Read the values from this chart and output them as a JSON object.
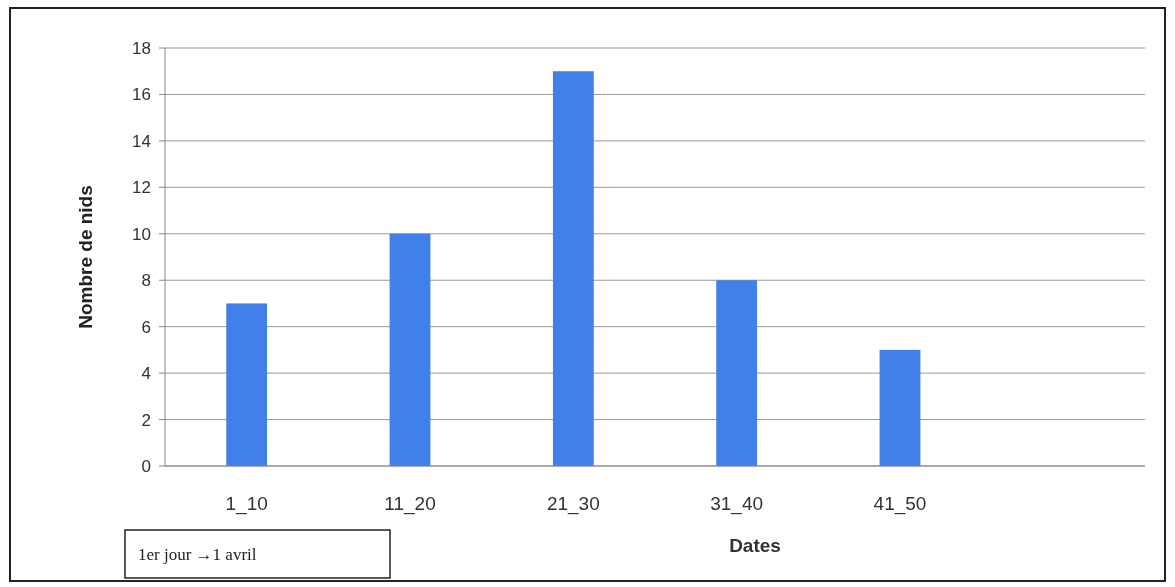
{
  "chart_data": {
    "type": "bar",
    "xlabel": "Dates",
    "ylabel": "Nombre de nids",
    "categories": [
      "1_10",
      "11_20",
      "21_30",
      "31_40",
      "41_50",
      null
    ],
    "values": [
      7,
      10,
      17,
      8,
      5,
      null
    ],
    "color": "#4080e8",
    "ylim": [
      0,
      18
    ],
    "yticks": [
      0,
      2,
      4,
      6,
      8,
      10,
      12,
      14,
      16,
      18
    ],
    "grid": "y",
    "annotations": [
      "1er jour →1 avril"
    ]
  }
}
